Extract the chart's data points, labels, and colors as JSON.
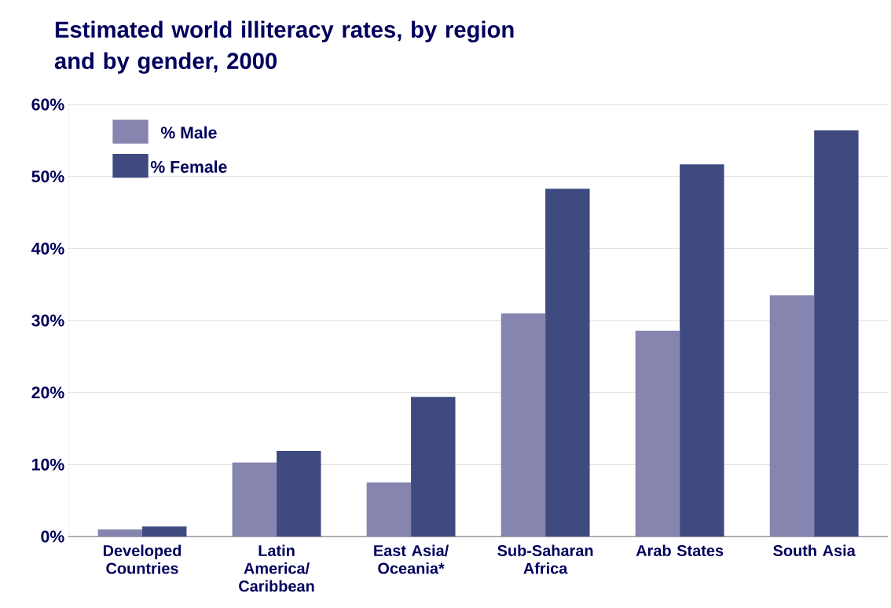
{
  "chart_data": {
    "type": "bar",
    "title": "Estimated world illiteracy rates, by region and by gender, 2000",
    "categories": [
      "Developed Countries",
      "Latin America/ Caribbean",
      "East Asia/ Oceania*",
      "Sub-Saharan Africa",
      "Arab States",
      "South Asia"
    ],
    "series": [
      {
        "name": "% Male",
        "color": "#8585b0",
        "values": [
          1.0,
          10.3,
          7.5,
          31.0,
          28.6,
          33.5
        ]
      },
      {
        "name": "% Female",
        "color": "#3f4a80",
        "values": [
          1.4,
          11.9,
          19.4,
          48.3,
          51.7,
          56.4
        ]
      }
    ],
    "ylim": [
      0,
      60
    ],
    "yticks": [
      {
        "value": 0,
        "label": "0%"
      },
      {
        "value": 10,
        "label": "10%"
      },
      {
        "value": 20,
        "label": "20%"
      },
      {
        "value": 30,
        "label": "30%"
      },
      {
        "value": 40,
        "label": "40%"
      },
      {
        "value": 50,
        "label": "50%"
      },
      {
        "value": 60,
        "label": "60%"
      }
    ],
    "grid": "y",
    "legend": "top left"
  }
}
